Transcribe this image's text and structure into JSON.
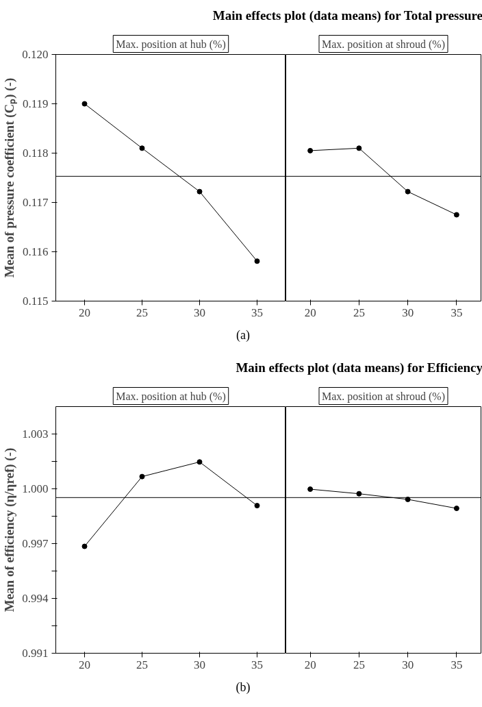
{
  "chart_data": [
    {
      "type": "line",
      "title": "Main effects plot (data means) for Total pressure",
      "subtitle": "Max. position at hub (%)",
      "ylabel": "Mean of pressure coefficient (Cₚ) (-)",
      "x": [
        20,
        25,
        30,
        35
      ],
      "series": [
        {
          "color": "#000000",
          "values": [
            0.119,
            0.1181,
            0.11722,
            0.11581
          ]
        }
      ],
      "xlim": [
        17.5,
        37.5
      ],
      "xticks": [
        20,
        25,
        30,
        35
      ],
      "ylim": [
        0.115,
        0.12
      ],
      "yticks": [
        0.115,
        0.116,
        0.117,
        0.118,
        0.119,
        "0.120"
      ],
      "ref_lines": [
        {
          "axis": "y",
          "value": 0.11753
        }
      ],
      "marker": "circle",
      "grid": false
    },
    {
      "type": "line",
      "subtitle": "Max. position at shroud (%)",
      "x": [
        20,
        25,
        30,
        35
      ],
      "series": [
        {
          "color": "#000000",
          "values": [
            0.11805,
            0.1181,
            0.11722,
            0.11675
          ]
        }
      ],
      "xlim": [
        17.5,
        37.5
      ],
      "xticks": [
        20,
        25,
        30,
        35
      ],
      "ylim": [
        0.115,
        0.12
      ],
      "ref_lines": [
        {
          "axis": "y",
          "value": 0.11753
        }
      ],
      "marker": "circle",
      "grid": false,
      "tick_labels": "x",
      "annotations": [
        "(a)"
      ]
    },
    {
      "type": "line",
      "title": "Main effects plot (data means) for Efficiency",
      "subtitle": "Max. position at hub (%)",
      "ylabel": "Mean of efficiency (η/ηref) (-)",
      "x": [
        20,
        25,
        30,
        35
      ],
      "series": [
        {
          "color": "#000000",
          "values": [
            0.99685,
            1.00067,
            1.00147,
            0.99908
          ]
        }
      ],
      "xlim": [
        17.5,
        37.5
      ],
      "xticks": [
        20,
        25,
        30,
        35
      ],
      "ylim": [
        0.991,
        1.0045
      ],
      "yticks": [
        0.991,
        {
          "value": 0.9925,
          "label": null
        },
        0.994,
        {
          "value": 0.9955,
          "label": null
        },
        0.997,
        {
          "value": 0.9985,
          "label": null
        },
        "1.000",
        {
          "value": 1.0015,
          "label": null
        },
        1.003
      ],
      "ref_lines": [
        {
          "axis": "y",
          "value": 0.99952
        }
      ],
      "marker": "circle",
      "grid": false
    },
    {
      "type": "line",
      "subtitle": "Max. position at shroud (%)",
      "x": [
        20,
        25,
        30,
        35
      ],
      "series": [
        {
          "color": "#000000",
          "values": [
            0.99998,
            0.99973,
            0.99942,
            0.99893
          ]
        }
      ],
      "xlim": [
        17.5,
        37.5
      ],
      "xticks": [
        20,
        25,
        30,
        35
      ],
      "ylim": [
        0.991,
        1.0045
      ],
      "ref_lines": [
        {
          "axis": "y",
          "value": 0.99952
        }
      ],
      "marker": "circle",
      "grid": false,
      "tick_labels": "x",
      "annotations": [
        "(b)"
      ]
    }
  ]
}
